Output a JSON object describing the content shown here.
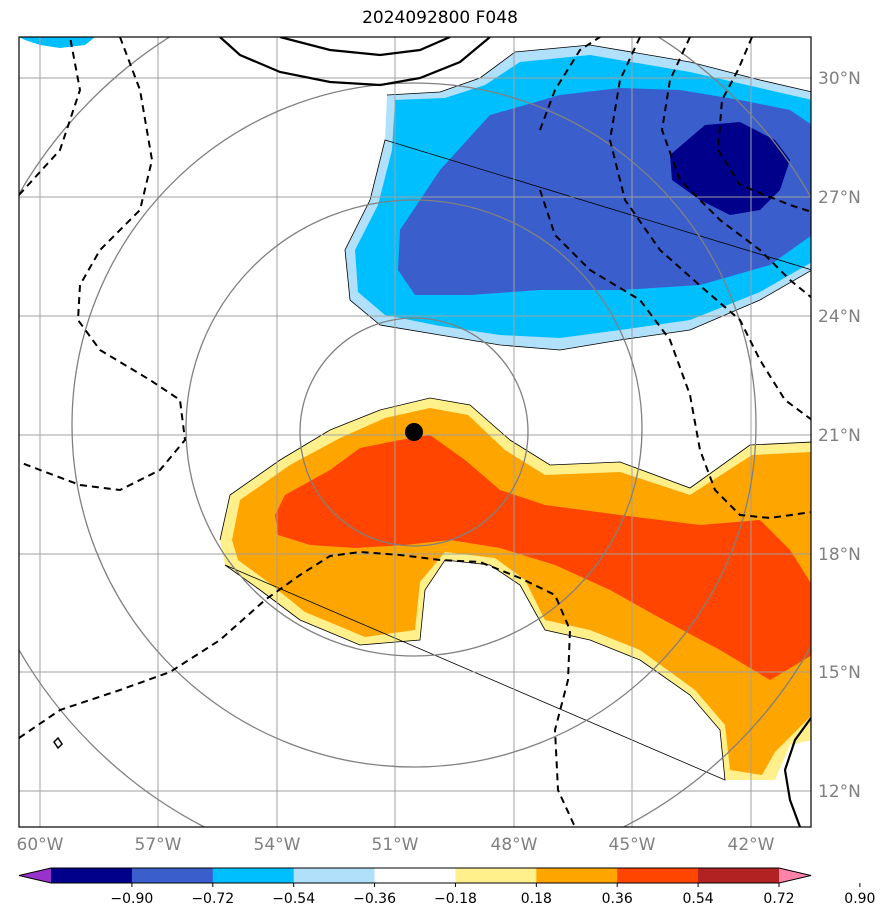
{
  "title": "2024092800 F048",
  "lat_labels": [
    "30°N",
    "27°N",
    "24°N",
    "21°N",
    "18°N",
    "15°N",
    "12°N"
  ],
  "lon_labels": [
    "60°W",
    "57°W",
    "54°W",
    "51°W",
    "48°W",
    "45°W",
    "42°W"
  ],
  "colorbar": {
    "tick_labels": [
      "−0.90",
      "−0.72",
      "−0.54",
      "−0.36",
      "−0.18",
      "0.18",
      "0.36",
      "0.54",
      "0.72",
      "0.90"
    ],
    "colors": [
      "#9932cc",
      "#00008b",
      "#3a5fcd",
      "#00bfff",
      "#b0e0fa",
      "#ffffff",
      "#fff08c",
      "#ffa500",
      "#ff4500",
      "#b22222",
      "#ff82ab"
    ]
  },
  "storm_center": {
    "lon": -50.5,
    "lat": 21.1
  },
  "range_rings": "concentric circles around storm center",
  "colors": {
    "grid": "#a0a0a0",
    "ring": "#808080",
    "contour": "#000000"
  }
}
